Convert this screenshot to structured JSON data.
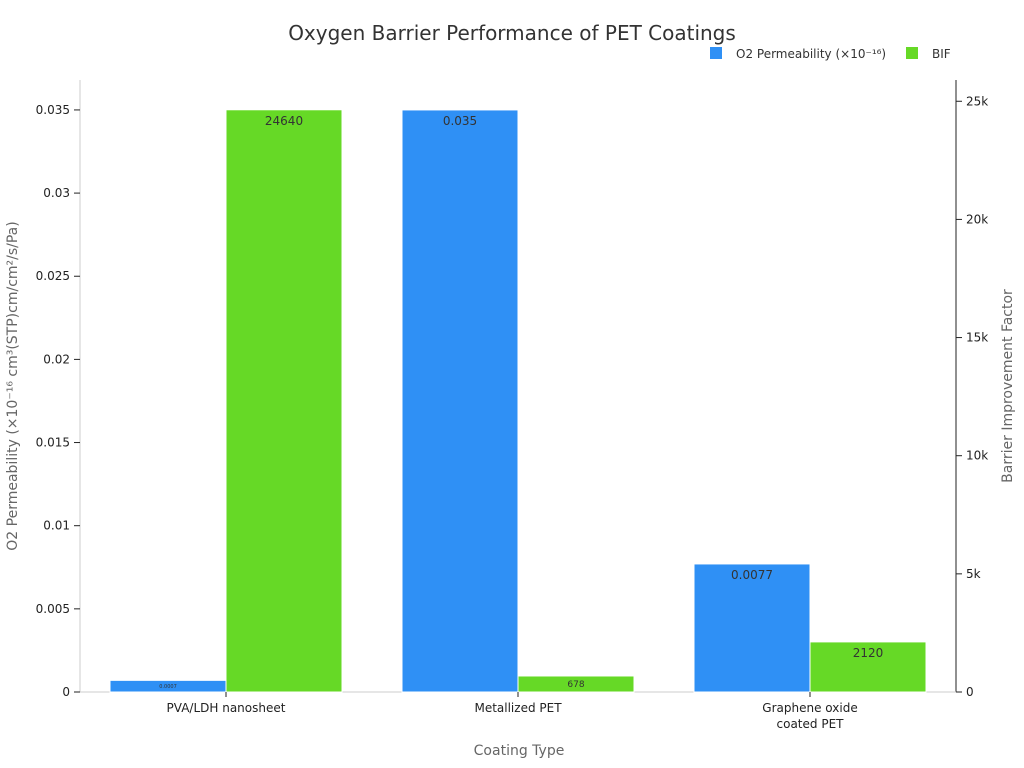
{
  "chart_data": {
    "type": "bar",
    "title": "Oxygen Barrier Performance of PET Coatings",
    "xlabel": "Coating Type",
    "ylabel_left": "O2 Permeability (×10⁻¹⁶ cm³(STP)cm/cm²/s/Pa)",
    "ylabel_right": "Barrier Improvement Factor",
    "categories": [
      [
        "PVA/LDH nanosheet"
      ],
      [
        "Metallized PET"
      ],
      [
        "Graphene oxide",
        "coated PET"
      ]
    ],
    "ylim_left": [
      0,
      0.0368
    ],
    "ylim_right": [
      0,
      25900
    ],
    "left_ticks": [
      {
        "value": 0,
        "label": "0"
      },
      {
        "value": 0.005,
        "label": "0.005"
      },
      {
        "value": 0.01,
        "label": "0.01"
      },
      {
        "value": 0.015,
        "label": "0.015"
      },
      {
        "value": 0.02,
        "label": "0.02"
      },
      {
        "value": 0.025,
        "label": "0.025"
      },
      {
        "value": 0.03,
        "label": "0.03"
      },
      {
        "value": 0.035,
        "label": "0.035"
      }
    ],
    "right_ticks": [
      {
        "value": 0,
        "label": "0"
      },
      {
        "value": 5000,
        "label": "5k"
      },
      {
        "value": 10000,
        "label": "10k"
      },
      {
        "value": 15000,
        "label": "15k"
      },
      {
        "value": 20000,
        "label": "20k"
      },
      {
        "value": 25000,
        "label": "25k"
      }
    ],
    "series": [
      {
        "name": "O2 Permeability (×10⁻¹⁶)",
        "axis": "left",
        "color": "#2f90f5",
        "values": [
          0.0007,
          0.035,
          0.0077
        ],
        "labels": [
          "0.0007",
          "0.035",
          "0.0077"
        ]
      },
      {
        "name": "BIF",
        "axis": "right",
        "color": "#66d926",
        "values": [
          24640,
          678,
          2120
        ],
        "labels": [
          "24640",
          "678",
          "2120"
        ]
      }
    ],
    "legend_position": "top-right",
    "grid": false
  }
}
